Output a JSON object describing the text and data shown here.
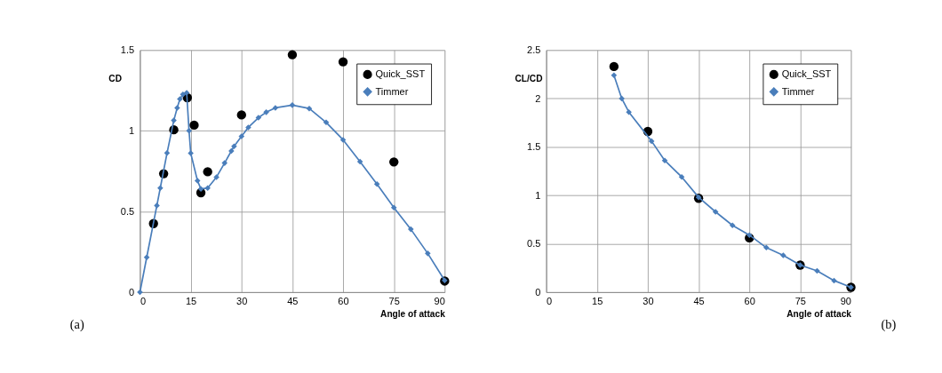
{
  "chart_data": [
    {
      "type": "line",
      "xlabel": "Angle of attack",
      "ylabel": "CD",
      "xlim": [
        0,
        90
      ],
      "xticks": [
        0,
        15,
        30,
        45,
        60,
        75,
        90
      ],
      "ylim": [
        0,
        1.5
      ],
      "yticks": [
        0,
        0.5,
        1,
        1.5
      ],
      "grid": true,
      "legend": "top right",
      "annotations": [
        "(a)"
      ],
      "series": [
        {
          "name": "Quick_SST",
          "type": "scatter",
          "marker": "circle",
          "color": "#000000",
          "x": [
            4,
            7,
            10,
            14,
            16,
            18,
            20,
            30,
            45,
            60,
            75,
            90
          ],
          "values": [
            0.425,
            0.734,
            1.006,
            1.205,
            1.035,
            0.616,
            0.746,
            1.098,
            1.471,
            1.427,
            0.807,
            0.069
          ]
        },
        {
          "name": "Timmer",
          "marker": "diamond",
          "color": "#4a7ebb",
          "x": [
            0,
            2,
            5,
            6,
            8,
            10,
            11,
            11.8,
            12.7,
            13.8,
            14.5,
            15,
            17,
            18,
            20,
            22.6,
            25,
            27,
            27.8,
            30,
            32,
            35,
            37.3,
            40,
            45,
            50,
            55,
            60,
            65,
            70,
            75,
            80,
            85,
            90
          ],
          "values": [
            0,
            0.216,
            0.537,
            0.645,
            0.862,
            1.064,
            1.142,
            1.197,
            1.225,
            1.235,
            1.0,
            0.861,
            0.69,
            0.64,
            0.645,
            0.713,
            0.8,
            0.875,
            0.904,
            0.966,
            1.021,
            1.081,
            1.115,
            1.142,
            1.159,
            1.138,
            1.052,
            0.944,
            0.809,
            0.67,
            0.524,
            0.39,
            0.24,
            0.073
          ]
        }
      ]
    },
    {
      "type": "line",
      "xlabel": "Angle of attack",
      "ylabel": "CL/CD",
      "xlim": [
        0,
        90
      ],
      "xticks": [
        0,
        15,
        30,
        45,
        60,
        75,
        90
      ],
      "ylim": [
        0,
        2.5
      ],
      "yticks": [
        0,
        0.5,
        1,
        1.5,
        2,
        2.5
      ],
      "grid": true,
      "legend": "top right",
      "annotations": [
        "(b)"
      ],
      "series": [
        {
          "name": "Quick_SST",
          "type": "scatter",
          "marker": "circle",
          "color": "#000000",
          "x": [
            20,
            30,
            45,
            60,
            75,
            90
          ],
          "values": [
            2.33,
            1.66,
            0.97,
            0.56,
            0.28,
            0.05
          ]
        },
        {
          "name": "Timmer",
          "marker": "diamond",
          "color": "#4a7ebb",
          "x": [
            20,
            22.3,
            24.4,
            31.1,
            35,
            40,
            45,
            50,
            55,
            60,
            65,
            70,
            75,
            80,
            85,
            90
          ],
          "values": [
            2.24,
            2.0,
            1.86,
            1.56,
            1.36,
            1.19,
            0.98,
            0.83,
            0.69,
            0.59,
            0.46,
            0.38,
            0.28,
            0.22,
            0.12,
            0.05
          ]
        }
      ]
    }
  ]
}
